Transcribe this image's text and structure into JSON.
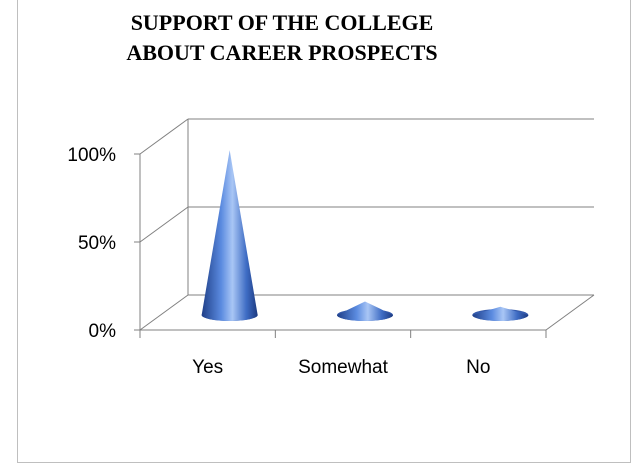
{
  "chart_data": {
    "type": "bar",
    "style": "3d-cone",
    "title_lines": [
      "SUPPORT OF THE COLLEGE",
      "ABOUT CAREER PROSPECTS"
    ],
    "categories": [
      "Yes",
      "Somewhat",
      "No"
    ],
    "values": [
      92,
      6,
      3
    ],
    "value_unit": "%",
    "ylim": [
      0,
      100
    ],
    "yticks": [
      "0%",
      "50%",
      "100%"
    ],
    "xlabel": "",
    "ylabel": "",
    "grid": true,
    "legend": "none",
    "colors": {
      "cone_light": "#9dbcf0",
      "cone_mid": "#4a7cd6",
      "cone_dark": "#1f3f88",
      "grid": "#808080"
    }
  }
}
